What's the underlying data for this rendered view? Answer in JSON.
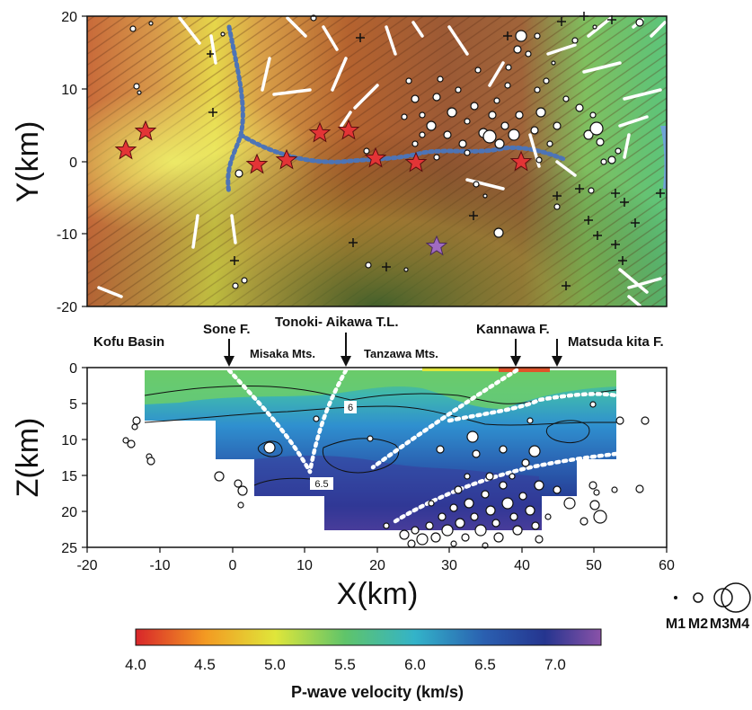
{
  "map": {
    "ylabel": "Y(km)",
    "y_ticks": [
      "20",
      "10",
      "0",
      "-10",
      "-20"
    ],
    "stars_red_count": 9,
    "star_purple_count": 1
  },
  "section": {
    "xlabel": "X(km)",
    "ylabel": "Z(km)",
    "x_ticks": [
      "-20",
      "-10",
      "0",
      "10",
      "20",
      "30",
      "40",
      "50",
      "60"
    ],
    "z_ticks": [
      "0",
      "5",
      "10",
      "15",
      "20",
      "25"
    ],
    "contour_labels": [
      "6",
      "6.5"
    ]
  },
  "annotations": {
    "kofu_basin": "Kofu Basin",
    "sone": "Sone F.",
    "tonoki": "Tonoki- Aikawa T.L.",
    "kannawa": "Kannawa F.",
    "matsuda": "Matsuda kita F.",
    "misaka": "Misaka Mts.",
    "tanzawa": "Tanzawa Mts."
  },
  "colorbar": {
    "title": "P-wave velocity (km/s)",
    "ticks": [
      "4.0",
      "4.5",
      "5.0",
      "5.5",
      "6.0",
      "6.5",
      "7.0"
    ],
    "stops": [
      "#d8262a",
      "#f39a22",
      "#dfe63a",
      "#5fc46a",
      "#33b3c9",
      "#2a5fb0",
      "#25358f",
      "#8a52a8"
    ]
  },
  "magnitude_legend": [
    "M1",
    "M2",
    "M3",
    "M4"
  ]
}
